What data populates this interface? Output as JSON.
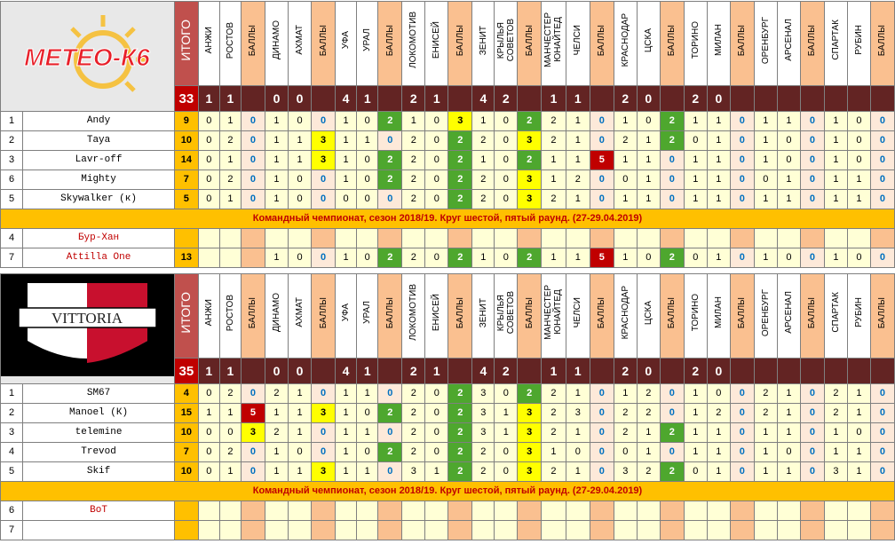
{
  "columns": [
    {
      "type": "game",
      "label": "АНЖИ"
    },
    {
      "type": "game",
      "label": "РОСТОВ"
    },
    {
      "type": "pts",
      "label": "БАЛЛЫ"
    },
    {
      "type": "game",
      "label": "ДИНАМО"
    },
    {
      "type": "game",
      "label": "АХМАТ"
    },
    {
      "type": "pts",
      "label": "БАЛЛЫ"
    },
    {
      "type": "game",
      "label": "УФА"
    },
    {
      "type": "game",
      "label": "УРАЛ"
    },
    {
      "type": "pts",
      "label": "БАЛЛЫ"
    },
    {
      "type": "game",
      "label": "ЛОКОМОТИВ"
    },
    {
      "type": "game",
      "label": "ЕНИСЕЙ"
    },
    {
      "type": "pts",
      "label": "БАЛЛЫ"
    },
    {
      "type": "game",
      "label": "ЗЕНИТ"
    },
    {
      "type": "game",
      "label": "КРЫЛЬЯ\nСОВЕТОВ"
    },
    {
      "type": "pts",
      "label": "БАЛЛЫ"
    },
    {
      "type": "game",
      "label": "МАНЧЕСТЕР\nЮНАЙТЕД"
    },
    {
      "type": "game",
      "label": "ЧЕЛСИ"
    },
    {
      "type": "pts",
      "label": "БАЛЛЫ"
    },
    {
      "type": "game",
      "label": "КРАСНОДАР"
    },
    {
      "type": "game",
      "label": "ЦСКА"
    },
    {
      "type": "pts",
      "label": "БАЛЛЫ"
    },
    {
      "type": "game",
      "label": "ТОРИНО"
    },
    {
      "type": "game",
      "label": "МИЛАН"
    },
    {
      "type": "pts",
      "label": "БАЛЛЫ"
    },
    {
      "type": "game",
      "label": "ОРЕНБУРГ"
    },
    {
      "type": "game",
      "label": "АРСЕНАЛ"
    },
    {
      "type": "pts",
      "label": "БАЛЛЫ"
    },
    {
      "type": "game",
      "label": "СПАРТАК"
    },
    {
      "type": "game",
      "label": "РУБИН"
    },
    {
      "type": "pts",
      "label": "БАЛЛЫ"
    }
  ],
  "itogo_label": "ИТОГО",
  "results_row": [
    "1",
    "1",
    "",
    "0",
    "0",
    "",
    "4",
    "1",
    "",
    "2",
    "1",
    "",
    "4",
    "2",
    "",
    "1",
    "1",
    "",
    "2",
    "0",
    "",
    "2",
    "0",
    "",
    "",
    "",
    "",
    "",
    "",
    ""
  ],
  "banner": "Командный чемпионат, сезон 2018/19. Круг шестой, пятый раунд. (27-29.04.2019)",
  "teams": [
    {
      "logo_text": "МЕТЕО-К6",
      "total": "33",
      "players": [
        {
          "rank": "1",
          "name": "Andy",
          "total": "9",
          "cells": [
            "0",
            "1",
            "0",
            "1",
            "0",
            "0",
            "1",
            "0",
            "2",
            "1",
            "0",
            "3",
            "1",
            "0",
            "2",
            "2",
            "1",
            "0",
            "1",
            "0",
            "2",
            "1",
            "1",
            "0",
            "1",
            "1",
            "0",
            "1",
            "0",
            "0"
          ]
        },
        {
          "rank": "2",
          "name": "Taya",
          "total": "10",
          "cells": [
            "0",
            "2",
            "0",
            "1",
            "1",
            "3",
            "1",
            "1",
            "0",
            "2",
            "0",
            "2",
            "2",
            "0",
            "3",
            "2",
            "1",
            "0",
            "2",
            "1",
            "2",
            "0",
            "1",
            "0",
            "1",
            "0",
            "0",
            "1",
            "0",
            "0"
          ]
        },
        {
          "rank": "3",
          "name": "Lavr-off",
          "total": "14",
          "cells": [
            "0",
            "1",
            "0",
            "1",
            "1",
            "3",
            "1",
            "0",
            "2",
            "2",
            "0",
            "2",
            "1",
            "0",
            "2",
            "1",
            "1",
            "5",
            "1",
            "1",
            "0",
            "1",
            "1",
            "0",
            "1",
            "0",
            "0",
            "1",
            "0",
            "0"
          ]
        },
        {
          "rank": "6",
          "name": "Mighty",
          "total": "7",
          "cells": [
            "0",
            "2",
            "0",
            "1",
            "0",
            "0",
            "1",
            "0",
            "2",
            "2",
            "0",
            "2",
            "2",
            "0",
            "3",
            "1",
            "2",
            "0",
            "0",
            "1",
            "0",
            "1",
            "1",
            "0",
            "0",
            "1",
            "0",
            "1",
            "1",
            "0"
          ]
        },
        {
          "rank": "5",
          "name": "Skywalker (к)",
          "total": "5",
          "cells": [
            "0",
            "1",
            "0",
            "1",
            "0",
            "0",
            "0",
            "0",
            "0",
            "2",
            "0",
            "2",
            "2",
            "0",
            "3",
            "2",
            "1",
            "0",
            "1",
            "1",
            "0",
            "1",
            "1",
            "0",
            "1",
            "1",
            "0",
            "1",
            "1",
            "0"
          ]
        }
      ],
      "reserves": [
        {
          "rank": "4",
          "name": "Бур-Хан",
          "total": "",
          "cells": [
            "",
            "",
            "",
            "",
            "",
            "",
            "",
            "",
            "",
            "",
            "",
            "",
            "",
            "",
            "",
            "",
            "",
            "",
            "",
            "",
            "",
            "",
            "",
            "",
            "",
            "",
            "",
            "",
            "",
            ""
          ]
        },
        {
          "rank": "7",
          "name": "Attilla One",
          "total": "13",
          "cells": [
            "",
            "",
            "",
            "1",
            "0",
            "0",
            "1",
            "0",
            "2",
            "2",
            "0",
            "2",
            "1",
            "0",
            "2",
            "1",
            "1",
            "5",
            "1",
            "0",
            "2",
            "0",
            "1",
            "0",
            "1",
            "0",
            "0",
            "1",
            "0",
            "0"
          ]
        }
      ]
    },
    {
      "logo_text": "VITTORIA",
      "total": "35",
      "players": [
        {
          "rank": "1",
          "name": "SM67",
          "total": "4",
          "cells": [
            "0",
            "2",
            "0",
            "2",
            "1",
            "0",
            "1",
            "1",
            "0",
            "2",
            "0",
            "2",
            "3",
            "0",
            "2",
            "2",
            "1",
            "0",
            "1",
            "2",
            "0",
            "1",
            "0",
            "0",
            "2",
            "1",
            "0",
            "2",
            "1",
            "0"
          ]
        },
        {
          "rank": "2",
          "name": "Manoel (К)",
          "total": "15",
          "cells": [
            "1",
            "1",
            "5",
            "1",
            "1",
            "3",
            "1",
            "0",
            "2",
            "2",
            "0",
            "2",
            "3",
            "1",
            "3",
            "2",
            "3",
            "0",
            "2",
            "2",
            "0",
            "1",
            "2",
            "0",
            "2",
            "1",
            "0",
            "2",
            "1",
            "0"
          ]
        },
        {
          "rank": "3",
          "name": "telemine",
          "total": "10",
          "cells": [
            "0",
            "0",
            "3",
            "2",
            "1",
            "0",
            "1",
            "1",
            "0",
            "2",
            "0",
            "2",
            "3",
            "1",
            "3",
            "2",
            "1",
            "0",
            "2",
            "1",
            "2",
            "1",
            "1",
            "0",
            "1",
            "1",
            "0",
            "1",
            "0",
            "0"
          ]
        },
        {
          "rank": "4",
          "name": "Trevod",
          "total": "7",
          "cells": [
            "0",
            "2",
            "0",
            "1",
            "0",
            "0",
            "1",
            "0",
            "2",
            "2",
            "0",
            "2",
            "2",
            "0",
            "3",
            "1",
            "0",
            "0",
            "0",
            "1",
            "0",
            "1",
            "1",
            "0",
            "1",
            "0",
            "0",
            "1",
            "1",
            "0"
          ]
        },
        {
          "rank": "5",
          "name": "Skif",
          "total": "10",
          "cells": [
            "0",
            "1",
            "0",
            "1",
            "1",
            "3",
            "1",
            "1",
            "0",
            "3",
            "1",
            "2",
            "2",
            "0",
            "3",
            "2",
            "1",
            "0",
            "3",
            "2",
            "2",
            "0",
            "1",
            "0",
            "1",
            "1",
            "0",
            "3",
            "1",
            "0"
          ]
        }
      ],
      "reserves": [
        {
          "rank": "6",
          "name": "BoT",
          "total": "",
          "cells": [
            "",
            "",
            "",
            "",
            "",
            "",
            "",
            "",
            "",
            "",
            "",
            "",
            "",
            "",
            "",
            "",
            "",
            "",
            "",
            "",
            "",
            "",
            "",
            "",
            "",
            "",
            "",
            "",
            "",
            ""
          ]
        },
        {
          "rank": "7",
          "name": "",
          "total": "",
          "cells": [
            "",
            "",
            "",
            "",
            "",
            "",
            "",
            "",
            "",
            "",
            "",
            "",
            "",
            "",
            "",
            "",
            "",
            "",
            "",
            "",
            "",
            "",
            "",
            "",
            "",
            "",
            "",
            "",
            "",
            ""
          ]
        }
      ]
    }
  ]
}
